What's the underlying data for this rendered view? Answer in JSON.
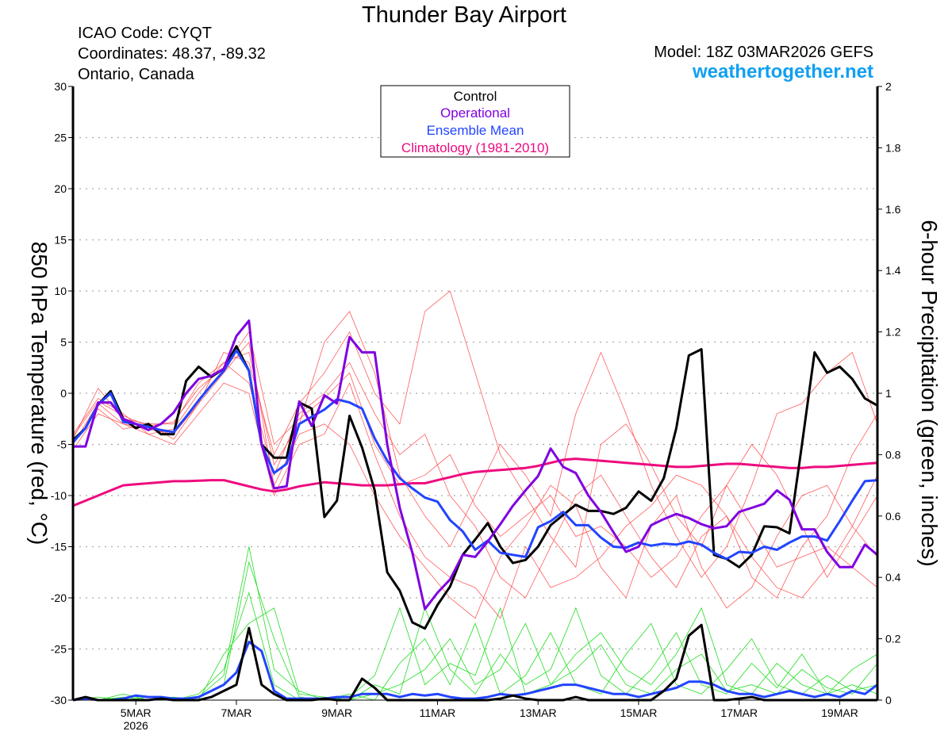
{
  "header": {
    "title": "Thunder Bay Airport",
    "icao": "ICAO Code: CYQT",
    "coordinates": "Coordinates: 48.37, -89.32",
    "region": "Ontario, Canada",
    "model": "Model: 18Z 03MAR2026 GEFS",
    "site": "weathertogether.net"
  },
  "legend": {
    "items": [
      {
        "label": "Control",
        "color": "#000000"
      },
      {
        "label": "Operational",
        "color": "#8000e0"
      },
      {
        "label": "Ensemble Mean",
        "color": "#2244ff"
      },
      {
        "label": "Climatology (1981-2010)",
        "color": "#ee0a7e"
      }
    ]
  },
  "colors": {
    "members_temp": "#ff4040",
    "members_precip": "#22dd22",
    "site": "#11a0f0"
  },
  "chart_data": {
    "type": "line",
    "ylabel": "850 hPa Temperature (red, °C)",
    "y2label": "6-hour Precipitation (green, inches)",
    "ylim": [
      -30,
      30
    ],
    "y2lim": [
      0,
      2
    ],
    "grid": true,
    "legend_position": "top-center",
    "yticks": [
      "30",
      "25",
      "20",
      "15",
      "10",
      "5",
      "0",
      "-5",
      "-10",
      "-15",
      "-20",
      "-25",
      "-30"
    ],
    "y2ticks": [
      "2",
      "1.8",
      "1.6",
      "1.4",
      "1.2",
      "1",
      "0.8",
      "0.6",
      "0.4",
      "0.2",
      "0"
    ],
    "xticks": [
      {
        "label": "5MAR",
        "sub": "2026",
        "time": "2026-03-05 00Z"
      },
      {
        "label": "7MAR",
        "sub": "",
        "time": "2026-03-07 00Z"
      },
      {
        "label": "9MAR",
        "sub": "",
        "time": "2026-03-09 00Z"
      },
      {
        "label": "11MAR",
        "sub": "",
        "time": "2026-03-11 00Z"
      },
      {
        "label": "13MAR",
        "sub": "",
        "time": "2026-03-13 00Z"
      },
      {
        "label": "15MAR",
        "sub": "",
        "time": "2026-03-15 00Z"
      },
      {
        "label": "17MAR",
        "sub": "",
        "time": "2026-03-17 00Z"
      },
      {
        "label": "19MAR",
        "sub": "",
        "time": "2026-03-19 00Z"
      }
    ],
    "x_range": [
      "2026-03-03 18Z",
      "2026-03-19 18Z"
    ],
    "x_step_hours": 6,
    "series": [
      {
        "name": "Control",
        "axis": "temp",
        "color": "#000000",
        "values": [
          -4.6,
          -3.4,
          -1.1,
          0.2,
          -2.5,
          -3.4,
          -3.0,
          -4.0,
          -4.0,
          1.2,
          2.6,
          1.6,
          2.4,
          4.6,
          2.2,
          -5.0,
          -6.3,
          -6.3,
          -0.9,
          -1.5,
          -12.1,
          -10.5,
          -2.2,
          -5.3,
          -9.5,
          -17.5,
          -19.3,
          -22.4,
          -23.0,
          -20.7,
          -18.9,
          -15.8,
          -14.3,
          -12.7,
          -15.0,
          -16.6,
          -16.3,
          -15.0,
          -12.9,
          -11.9,
          -10.9,
          -11.5,
          -11.5,
          -11.8,
          -11.2,
          -9.6,
          -10.5,
          -8.3,
          -3.4,
          3.7,
          4.3,
          -15.8,
          -16.2,
          -17.0,
          -15.8,
          -13.0,
          -13.1,
          -13.7,
          -5.0,
          4.0,
          2.0,
          2.6,
          1.4,
          -0.5,
          -1.2
        ]
      },
      {
        "name": "Operational",
        "axis": "temp",
        "color": "#8000e0",
        "values": [
          -5.2,
          -5.2,
          -0.9,
          -0.9,
          -2.5,
          -3.0,
          -3.6,
          -3.0,
          -1.9,
          0.0,
          1.4,
          1.7,
          2.4,
          5.6,
          7.1,
          -5.0,
          -9.3,
          -9.1,
          -0.8,
          -3.2,
          -0.2,
          -1.0,
          5.5,
          4.0,
          4.0,
          -5.0,
          -11.2,
          -15.6,
          -21.1,
          -19.5,
          -18.2,
          -15.8,
          -16.0,
          -14.5,
          -12.8,
          -11.0,
          -9.5,
          -8.1,
          -5.4,
          -7.2,
          -7.8,
          -10.0,
          -11.6,
          -13.6,
          -15.5,
          -15.0,
          -12.9,
          -12.3,
          -11.8,
          -12.2,
          -12.8,
          -13.2,
          -13.0,
          -11.6,
          -11.2,
          -10.8,
          -9.5,
          -10.4,
          -13.3,
          -13.3,
          -15.5,
          -17.0,
          -17.0,
          -14.8,
          -15.8
        ]
      },
      {
        "name": "Ensemble Mean",
        "axis": "temp",
        "color": "#2244ff",
        "values": [
          -4.8,
          -3.4,
          -1.1,
          0.0,
          -2.8,
          -3.0,
          -3.3,
          -3.6,
          -3.8,
          -2.3,
          -0.7,
          0.8,
          2.2,
          4.2,
          2.2,
          -5.0,
          -7.8,
          -6.9,
          -3.0,
          -2.3,
          -1.6,
          -0.6,
          -0.9,
          -1.5,
          -4.4,
          -6.6,
          -8.3,
          -9.3,
          -10.2,
          -10.6,
          -12.4,
          -13.5,
          -15.3,
          -14.4,
          -15.6,
          -15.8,
          -16.0,
          -13.1,
          -12.5,
          -11.6,
          -12.9,
          -12.9,
          -14.1,
          -15.0,
          -15.1,
          -14.6,
          -14.9,
          -14.7,
          -14.8,
          -14.5,
          -14.8,
          -15.6,
          -16.2,
          -15.5,
          -15.6,
          -15.0,
          -15.3,
          -14.6,
          -14.0,
          -14.0,
          -14.4,
          -12.5,
          -10.5,
          -8.6,
          -8.5
        ]
      },
      {
        "name": "Climatology (1981-2010)",
        "axis": "temp",
        "color": "#ee0a7e",
        "values": [
          -11.0,
          -10.5,
          -10.0,
          -9.5,
          -9.0,
          -8.9,
          -8.8,
          -8.7,
          -8.6,
          -8.6,
          -8.55,
          -8.5,
          -8.5,
          -8.8,
          -9.1,
          -9.4,
          -9.6,
          -9.4,
          -9.1,
          -8.9,
          -8.7,
          -8.8,
          -8.9,
          -9.0,
          -9.0,
          -9.0,
          -8.9,
          -8.8,
          -8.8,
          -8.5,
          -8.2,
          -7.9,
          -7.7,
          -7.6,
          -7.5,
          -7.4,
          -7.3,
          -7.1,
          -6.8,
          -6.5,
          -6.4,
          -6.5,
          -6.6,
          -6.7,
          -6.8,
          -6.9,
          -7.0,
          -7.1,
          -7.2,
          -7.2,
          -7.1,
          -7.0,
          -6.9,
          -6.9,
          -7.0,
          -7.1,
          -7.2,
          -7.3,
          -7.3,
          -7.2,
          -7.2,
          -7.1,
          -7.0,
          -6.9,
          -6.8
        ]
      },
      {
        "name": "Control",
        "axis": "precip",
        "color": "#000000",
        "values": [
          0,
          0.01,
          0,
          0,
          0,
          0,
          0,
          0.005,
          0,
          0,
          0,
          0.01,
          0.03,
          0.05,
          0.235,
          0.05,
          0.02,
          0,
          0,
          0,
          0.005,
          0,
          0,
          0.07,
          0.04,
          0,
          0,
          0,
          0,
          0,
          0,
          0,
          0,
          0,
          0.005,
          0.015,
          0.005,
          0,
          0,
          0,
          0.01,
          0,
          0,
          0,
          0,
          0,
          0,
          0.03,
          0.07,
          0.21,
          0.245,
          0,
          0,
          0.005,
          0.01,
          0,
          0,
          0,
          0,
          0,
          0,
          0,
          0,
          0,
          0
        ]
      },
      {
        "name": "Ensemble Mean",
        "axis": "precip",
        "color": "#2244ff",
        "values": [
          0,
          0.005,
          0,
          0,
          0.005,
          0.015,
          0.01,
          0.01,
          0.005,
          0.005,
          0.01,
          0.03,
          0.05,
          0.09,
          0.19,
          0.16,
          0.03,
          0.005,
          0.005,
          0.005,
          0.005,
          0.01,
          0.01,
          0.02,
          0.02,
          0.02,
          0.01,
          0.02,
          0.015,
          0.02,
          0.01,
          0.005,
          0.005,
          0.01,
          0.02,
          0.015,
          0.02,
          0.03,
          0.04,
          0.05,
          0.05,
          0.04,
          0.03,
          0.02,
          0.02,
          0.01,
          0.02,
          0.03,
          0.04,
          0.06,
          0.06,
          0.05,
          0.03,
          0.02,
          0.02,
          0.01,
          0.02,
          0.03,
          0.02,
          0.01,
          0.02,
          0.01,
          0.03,
          0.02,
          0.05
        ]
      }
    ],
    "member_x_step_hours": 12,
    "temperature_members": [
      [
        -4,
        -0.5,
        -2,
        -4,
        -3.5,
        0,
        3,
        1,
        -8,
        -2,
        0,
        3,
        -2,
        -6,
        -4,
        -10,
        -13,
        -18,
        -20,
        -15,
        -10,
        -8,
        -12,
        -16,
        -19,
        -14,
        -12,
        -18,
        -20,
        -15,
        -12,
        -6,
        -2
      ],
      [
        -5,
        -1.5,
        -3.5,
        -3,
        -4.5,
        -1,
        4,
        3,
        -6,
        -1,
        2,
        6,
        0,
        -3,
        8,
        10,
        2,
        -6,
        -10,
        -14,
        -17,
        -5,
        -3,
        -7,
        -12,
        -15,
        -9,
        -5,
        -8,
        -13,
        -18,
        -14,
        -10
      ],
      [
        -5.5,
        -2,
        -3,
        -3.5,
        -4,
        -1,
        2,
        5,
        -9,
        -4,
        -3,
        -5,
        -10,
        -14,
        -17,
        -20,
        -22,
        -16,
        -13,
        -9,
        -11,
        -17,
        -20,
        -13,
        -10,
        -17,
        -21,
        -19,
        -14,
        -10,
        -9,
        -13,
        -16
      ],
      [
        -4.5,
        0.5,
        -2.5,
        -3,
        -3,
        1,
        3,
        4,
        -7,
        -3,
        5,
        8,
        2,
        -8,
        -12,
        -15,
        -10,
        -5,
        -8,
        -12,
        -2,
        4,
        -2,
        -9,
        -14,
        -18,
        -15,
        -9,
        -2,
        -1,
        2,
        4,
        -3
      ],
      [
        -5,
        -1,
        -3,
        -4,
        -5,
        -2,
        1,
        0,
        -10,
        -5,
        -4,
        1,
        -6,
        -12,
        -16,
        -18,
        -19,
        -22,
        -15,
        -19,
        -18,
        -16,
        -13,
        -11,
        -8,
        -9,
        -12,
        -16,
        -19,
        -20,
        -17,
        -13,
        -8
      ],
      [
        -4.2,
        -0.8,
        -2.2,
        -3.2,
        -2.8,
        0.5,
        2.5,
        6,
        -5,
        -2.5,
        -0.5,
        2,
        -5,
        -9,
        -8,
        -6,
        -11,
        -14,
        -12,
        -10,
        -14,
        -13,
        -15,
        -18,
        -16,
        -12,
        -9,
        -13,
        -17,
        -16,
        -15,
        -17,
        -19
      ]
    ],
    "precip_members": [
      [
        0,
        0,
        0.01,
        0,
        0,
        0.02,
        0.1,
        0.35,
        0.05,
        0,
        0,
        0,
        0.02,
        0.05,
        0.1,
        0.2,
        0.05,
        0.1,
        0.25,
        0.05,
        0.1,
        0.18,
        0.05,
        0.02,
        0.1,
        0.15,
        0.03,
        0.05,
        0.02,
        0.1,
        0.04,
        0.02,
        0.12
      ],
      [
        0,
        0,
        0,
        0.01,
        0,
        0.01,
        0.05,
        0.45,
        0.2,
        0.01,
        0,
        0.02,
        0,
        0.12,
        0.2,
        0.05,
        0.25,
        0.02,
        0.08,
        0.22,
        0.05,
        0.02,
        0.15,
        0.25,
        0.05,
        0.02,
        0.1,
        0.2,
        0.05,
        0.02,
        0.08,
        0.03,
        0.05
      ],
      [
        0,
        0,
        0.02,
        0,
        0.01,
        0,
        0.15,
        0.25,
        0.3,
        0.02,
        0.01,
        0,
        0.05,
        0.02,
        0.3,
        0.1,
        0.02,
        0.15,
        0.05,
        0.1,
        0.3,
        0.08,
        0.02,
        0.1,
        0.22,
        0.05,
        0.02,
        0.12,
        0.04,
        0.15,
        0.02,
        0.1,
        0.15
      ],
      [
        0,
        0.01,
        0,
        0,
        0,
        0.01,
        0.08,
        0.5,
        0.1,
        0.03,
        0,
        0.01,
        0.08,
        0.3,
        0.05,
        0.12,
        0.08,
        0.3,
        0.02,
        0.05,
        0.15,
        0.22,
        0.1,
        0.05,
        0.15,
        0.3,
        0.05,
        0.02,
        0.12,
        0.05,
        0.02,
        0.05,
        0.02
      ]
    ]
  }
}
